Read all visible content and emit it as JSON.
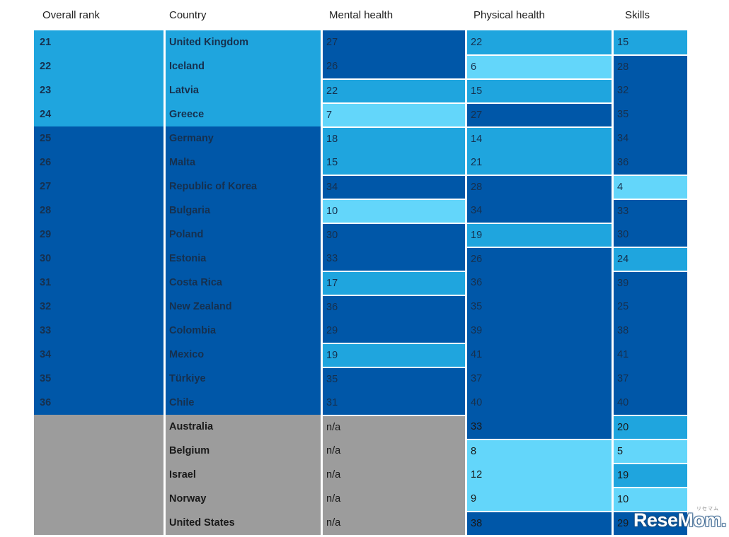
{
  "chart_data": {
    "type": "table",
    "columns": [
      "Overall rank",
      "Country",
      "Mental health",
      "Physical health",
      "Skills"
    ],
    "value_columns": [
      "Mental health",
      "Physical health",
      "Skills"
    ],
    "color_legend": {
      "light": "#63d6fa",
      "medium": "#1fa5de",
      "dark": "#0057a8",
      "gray": "#9c9c9c"
    },
    "rows": [
      {
        "rank": "21",
        "country": "United Kingdom",
        "group_color": "medium",
        "values": [
          [
            "27",
            "dark"
          ],
          [
            "22",
            "medium"
          ],
          [
            "15",
            "medium"
          ]
        ]
      },
      {
        "rank": "22",
        "country": "Iceland",
        "group_color": "medium",
        "values": [
          [
            "26",
            "dark"
          ],
          [
            "6",
            "light"
          ],
          [
            "28",
            "dark"
          ]
        ]
      },
      {
        "rank": "23",
        "country": "Latvia",
        "group_color": "medium",
        "values": [
          [
            "22",
            "medium"
          ],
          [
            "15",
            "medium"
          ],
          [
            "32",
            "dark"
          ]
        ]
      },
      {
        "rank": "24",
        "country": "Greece",
        "group_color": "medium",
        "values": [
          [
            "7",
            "light"
          ],
          [
            "27",
            "dark"
          ],
          [
            "35",
            "dark"
          ]
        ]
      },
      {
        "rank": "25",
        "country": "Germany",
        "group_color": "dark",
        "values": [
          [
            "18",
            "medium"
          ],
          [
            "14",
            "medium"
          ],
          [
            "34",
            "dark"
          ]
        ]
      },
      {
        "rank": "26",
        "country": "Malta",
        "group_color": "dark",
        "values": [
          [
            "15",
            "medium"
          ],
          [
            "21",
            "medium"
          ],
          [
            "36",
            "dark"
          ]
        ]
      },
      {
        "rank": "27",
        "country": "Republic of Korea",
        "group_color": "dark",
        "values": [
          [
            "34",
            "dark"
          ],
          [
            "28",
            "dark"
          ],
          [
            "4",
            "light"
          ]
        ]
      },
      {
        "rank": "28",
        "country": "Bulgaria",
        "group_color": "dark",
        "values": [
          [
            "10",
            "light"
          ],
          [
            "34",
            "dark"
          ],
          [
            "33",
            "dark"
          ]
        ]
      },
      {
        "rank": "29",
        "country": "Poland",
        "group_color": "dark",
        "values": [
          [
            "30",
            "dark"
          ],
          [
            "19",
            "medium"
          ],
          [
            "30",
            "dark"
          ]
        ]
      },
      {
        "rank": "30",
        "country": "Estonia",
        "group_color": "dark",
        "values": [
          [
            "33",
            "dark"
          ],
          [
            "26",
            "dark"
          ],
          [
            "24",
            "medium"
          ]
        ]
      },
      {
        "rank": "31",
        "country": "Costa Rica",
        "group_color": "dark",
        "values": [
          [
            "17",
            "medium"
          ],
          [
            "36",
            "dark"
          ],
          [
            "39",
            "dark"
          ]
        ]
      },
      {
        "rank": "32",
        "country": "New Zealand",
        "group_color": "dark",
        "values": [
          [
            "36",
            "dark"
          ],
          [
            "35",
            "dark"
          ],
          [
            "25",
            "dark"
          ]
        ]
      },
      {
        "rank": "33",
        "country": "Colombia",
        "group_color": "dark",
        "values": [
          [
            "29",
            "dark"
          ],
          [
            "39",
            "dark"
          ],
          [
            "38",
            "dark"
          ]
        ]
      },
      {
        "rank": "34",
        "country": "Mexico",
        "group_color": "dark",
        "values": [
          [
            "19",
            "medium"
          ],
          [
            "41",
            "dark"
          ],
          [
            "41",
            "dark"
          ]
        ]
      },
      {
        "rank": "35",
        "country": "Türkiye",
        "group_color": "dark",
        "values": [
          [
            "35",
            "dark"
          ],
          [
            "37",
            "dark"
          ],
          [
            "37",
            "dark"
          ]
        ]
      },
      {
        "rank": "36",
        "country": "Chile",
        "group_color": "dark",
        "values": [
          [
            "31",
            "dark"
          ],
          [
            "40",
            "dark"
          ],
          [
            "40",
            "dark"
          ]
        ]
      },
      {
        "rank": "",
        "country": "Australia",
        "group_color": "gray",
        "values": [
          [
            "n/a",
            "gray"
          ],
          [
            "33",
            "dark"
          ],
          [
            "20",
            "medium"
          ]
        ]
      },
      {
        "rank": "",
        "country": "Belgium",
        "group_color": "gray",
        "values": [
          [
            "n/a",
            "gray"
          ],
          [
            "8",
            "light"
          ],
          [
            "5",
            "light"
          ]
        ]
      },
      {
        "rank": "",
        "country": "Israel",
        "group_color": "gray",
        "values": [
          [
            "n/a",
            "gray"
          ],
          [
            "12",
            "light"
          ],
          [
            "19",
            "medium"
          ]
        ]
      },
      {
        "rank": "",
        "country": "Norway",
        "group_color": "gray",
        "values": [
          [
            "n/a",
            "gray"
          ],
          [
            "9",
            "light"
          ],
          [
            "10",
            "light"
          ]
        ]
      },
      {
        "rank": "",
        "country": "United States",
        "group_color": "gray",
        "values": [
          [
            "n/a",
            "gray"
          ],
          [
            "38",
            "dark"
          ],
          [
            "29",
            "dark"
          ]
        ]
      }
    ]
  },
  "watermark": {
    "text": "ReseMom.",
    "ruby": "リセマム"
  }
}
